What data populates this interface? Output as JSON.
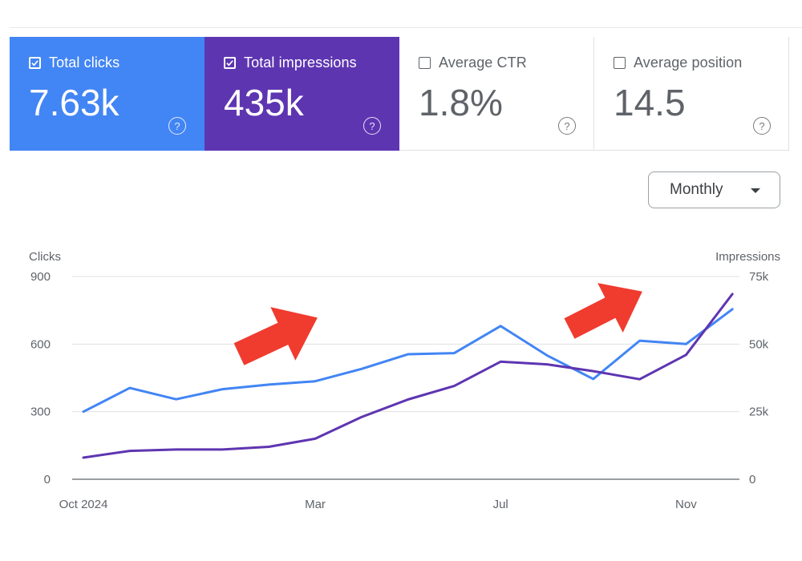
{
  "cards": [
    {
      "label": "Total clicks",
      "value": "7.63k",
      "checked": true,
      "help": "?"
    },
    {
      "label": "Total impressions",
      "value": "435k",
      "checked": true,
      "help": "?"
    },
    {
      "label": "Average CTR",
      "value": "1.8%",
      "checked": false,
      "help": "?"
    },
    {
      "label": "Average position",
      "value": "14.5",
      "checked": false,
      "help": "?"
    }
  ],
  "period": {
    "label": "Monthly"
  },
  "colors": {
    "clicks": "#4285f4",
    "impressions": "#5e35b1",
    "annotation": "#f03b2f",
    "grid": "#e0e0e0"
  },
  "chart_data": {
    "type": "line",
    "title": "",
    "x": [
      0,
      1,
      2,
      3,
      4,
      5,
      6,
      7,
      8,
      9,
      10,
      11,
      12,
      13,
      14
    ],
    "x_tick_labels": [
      {
        "at": 0,
        "label": "Oct 2024"
      },
      {
        "at": 5,
        "label": "Mar"
      },
      {
        "at": 9,
        "label": "Jul"
      },
      {
        "at": 13,
        "label": "Nov"
      }
    ],
    "y_left": {
      "label": "Clicks",
      "range": [
        0,
        900
      ],
      "ticks": [
        0,
        300,
        600,
        900
      ],
      "tick_labels": [
        "0",
        "300",
        "600",
        "900"
      ]
    },
    "y_right": {
      "label": "Impressions",
      "range": [
        0,
        75000
      ],
      "ticks": [
        0,
        25000,
        50000,
        75000
      ],
      "tick_labels": [
        "0",
        "25k",
        "50k",
        "75k"
      ]
    },
    "series": [
      {
        "name": "Clicks",
        "axis": "left",
        "values": [
          300,
          405,
          355,
          400,
          420,
          435,
          490,
          555,
          560,
          680,
          550,
          445,
          615,
          600,
          755
        ]
      },
      {
        "name": "Impressions",
        "axis": "right",
        "values": [
          8000,
          10500,
          11000,
          11000,
          12000,
          15000,
          23000,
          29500,
          34500,
          43500,
          42500,
          40000,
          37000,
          46000,
          68500
        ]
      }
    ],
    "annotations": [
      {
        "type": "arrow",
        "near": "Mar",
        "direction": "up-right"
      },
      {
        "type": "arrow",
        "near": "Nov",
        "direction": "up-right"
      }
    ]
  }
}
